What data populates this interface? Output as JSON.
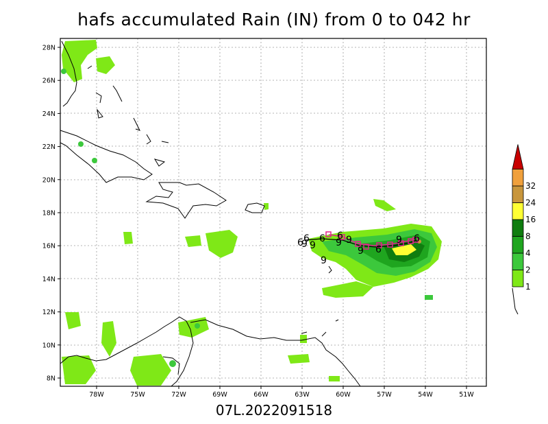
{
  "title": "hafs accumulated Rain (IN) from 0 to 042 hr",
  "subtitle": "07L.2022091518",
  "map": {
    "lat_labels": [
      "8N",
      "10N",
      "12N",
      "14N",
      "16N",
      "18N",
      "20N",
      "22N",
      "24N",
      "26N",
      "28N"
    ],
    "lon_labels": [
      "78W",
      "75W",
      "72W",
      "69W",
      "66W",
      "63W",
      "60W",
      "57W",
      "54W",
      "51W"
    ]
  },
  "colorbar": {
    "labels": [
      "1",
      "2",
      "4",
      "8",
      "16",
      "24",
      "32"
    ],
    "colors": [
      "#7fe817",
      "#3cc83c",
      "#1fa51f",
      "#0f7d0f",
      "#ffff33",
      "#c8963c",
      "#f0a03c",
      "#c80000"
    ]
  },
  "track": {
    "symbols": [
      "6",
      "6",
      "9",
      "9",
      "6",
      "9",
      "6",
      "9",
      "9",
      "9",
      "6",
      "9",
      "6"
    ],
    "color": "#e0208c"
  }
}
